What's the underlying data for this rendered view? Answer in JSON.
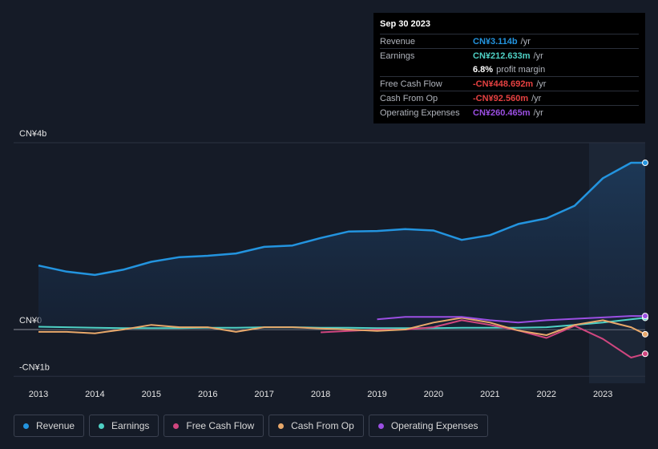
{
  "chart_data": {
    "type": "line",
    "x": [
      2013.0,
      2013.5,
      2014.0,
      2014.5,
      2015.0,
      2015.5,
      2016.0,
      2016.5,
      2017.0,
      2017.5,
      2018.0,
      2018.5,
      2019.0,
      2019.5,
      2020.0,
      2020.5,
      2021.0,
      2021.5,
      2022.0,
      2022.5,
      2023.0,
      2023.5,
      2023.75
    ],
    "xlim": [
      2012.56,
      2023.75
    ],
    "xticks": [
      2013,
      2014,
      2015,
      2016,
      2017,
      2018,
      2019,
      2020,
      2021,
      2022,
      2023
    ],
    "ylim": [
      -1.15,
      4
    ],
    "yticks": [
      {
        "value": 4,
        "label": "CN¥4b"
      },
      {
        "value": 0,
        "label": "CN¥0"
      },
      {
        "value": -1,
        "label": "-CN¥1b"
      }
    ],
    "series": [
      {
        "name": "Revenue",
        "color": "#2394df",
        "values": [
          1.37,
          1.24,
          1.17,
          1.28,
          1.45,
          1.55,
          1.58,
          1.63,
          1.77,
          1.8,
          1.96,
          2.1,
          2.11,
          2.15,
          2.12,
          1.92,
          2.02,
          2.26,
          2.38,
          2.65,
          3.24,
          3.57,
          3.57
        ]
      },
      {
        "name": "Earnings",
        "color": "#4fd1c5",
        "values": [
          0.06,
          0.05,
          0.04,
          0.03,
          0.03,
          0.03,
          0.04,
          0.04,
          0.05,
          0.05,
          0.04,
          0.04,
          0.03,
          0.03,
          0.03,
          0.04,
          0.04,
          0.04,
          0.05,
          0.1,
          0.15,
          0.22,
          0.25
        ]
      },
      {
        "name": "Free Cash Flow",
        "color": "#d0467f",
        "values": [
          null,
          null,
          null,
          null,
          null,
          null,
          null,
          null,
          null,
          null,
          -0.06,
          -0.03,
          0.0,
          0.0,
          0.05,
          0.2,
          0.1,
          -0.02,
          -0.18,
          0.08,
          -0.2,
          -0.6,
          -0.52
        ]
      },
      {
        "name": "Cash From Op",
        "color": "#e8a86a",
        "values": [
          -0.05,
          -0.05,
          -0.08,
          0.0,
          0.1,
          0.05,
          0.05,
          -0.05,
          0.05,
          0.05,
          0.02,
          0.0,
          -0.03,
          0.0,
          0.15,
          0.25,
          0.15,
          -0.02,
          -0.12,
          0.1,
          0.2,
          0.05,
          -0.1
        ]
      },
      {
        "name": "Operating Expenses",
        "color": "#9b4fe3",
        "values": [
          null,
          null,
          null,
          null,
          null,
          null,
          null,
          null,
          null,
          null,
          null,
          null,
          0.22,
          0.27,
          0.27,
          0.27,
          0.2,
          0.15,
          0.2,
          0.23,
          0.26,
          0.29,
          0.29
        ]
      }
    ]
  },
  "tooltip": {
    "title": "Sep 30 2023",
    "rows": [
      {
        "label": "Revenue",
        "value": "CN¥3.114b",
        "unit": "/yr",
        "color": "#2394df"
      },
      {
        "label": "Earnings",
        "value": "CN¥212.633m",
        "unit": "/yr",
        "color": "#4fd1c5"
      },
      {
        "label": "Free Cash Flow",
        "value": "-CN¥448.692m",
        "unit": "/yr",
        "color": "#e64141"
      },
      {
        "label": "Cash From Op",
        "value": "-CN¥92.560m",
        "unit": "/yr",
        "color": "#e64141"
      },
      {
        "label": "Operating Expenses",
        "value": "CN¥260.465m",
        "unit": "/yr",
        "color": "#9b4fe3"
      }
    ],
    "margin": {
      "value": "6.8%",
      "label": "profit margin"
    }
  }
}
